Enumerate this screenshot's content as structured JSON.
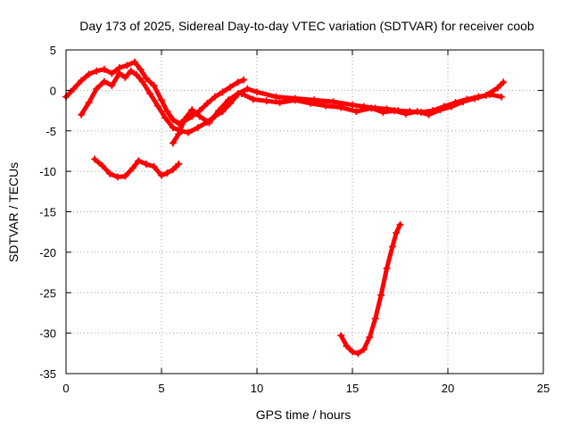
{
  "chart_data": {
    "type": "scatter",
    "title": "Day 173 of 2025, Sidereal Day-to-day VTEC variation (SDTVAR) for receiver coob",
    "xlabel": "GPS time / hours",
    "ylabel": "SDTVAR / TECUs",
    "xlim": [
      0,
      25
    ],
    "ylim": [
      -35,
      5
    ],
    "xticks": [
      0,
      5,
      10,
      15,
      20,
      25
    ],
    "yticks": [
      5,
      0,
      -5,
      -10,
      -15,
      -20,
      -25,
      -30,
      -35
    ],
    "grid": true,
    "marker": "plus",
    "color": "#ff0000",
    "series": [
      {
        "name": "track-a",
        "x": [
          0.0,
          0.4,
          0.8,
          1.2,
          1.6,
          2.0,
          2.4,
          2.8,
          3.2,
          3.6,
          3.9,
          4.2,
          4.6,
          5.0,
          5.3,
          5.6,
          5.9,
          6.2,
          6.6,
          7.0,
          7.4,
          7.8,
          8.2,
          8.6,
          9.0,
          9.3
        ],
        "y": [
          -0.8,
          0.2,
          1.2,
          2.0,
          2.4,
          2.6,
          2.1,
          2.8,
          3.1,
          3.5,
          2.6,
          1.5,
          0.6,
          -1.2,
          -2.6,
          -3.6,
          -4.1,
          -3.8,
          -3.2,
          -2.5,
          -1.6,
          -0.8,
          -0.2,
          0.4,
          1.0,
          1.3
        ]
      },
      {
        "name": "track-b",
        "x": [
          0.8,
          1.2,
          1.6,
          2.0,
          2.4,
          2.8,
          3.1,
          3.4,
          3.7,
          4.0,
          4.4,
          4.8,
          5.2,
          5.6,
          6.0,
          6.4,
          6.9,
          7.4,
          7.8,
          8.2,
          8.6,
          9.0
        ],
        "y": [
          -3.0,
          -1.5,
          0.2,
          1.1,
          0.6,
          2.1,
          1.6,
          2.4,
          1.9,
          1.1,
          -0.4,
          -1.9,
          -3.4,
          -4.6,
          -5.0,
          -5.2,
          -4.6,
          -3.9,
          -3.2,
          -2.6,
          -1.6,
          -0.5
        ]
      },
      {
        "name": "track-c",
        "x": [
          5.6,
          5.9,
          6.2,
          6.6,
          7.0,
          7.5,
          8.0,
          8.5,
          9.0,
          9.5,
          10.0,
          11.0,
          12.0,
          13.0,
          14.0,
          15.0,
          15.6,
          16.2,
          16.8,
          17.4,
          18.0,
          18.6,
          19.2,
          19.8,
          20.4,
          21.0,
          21.6,
          22.2,
          22.8
        ],
        "y": [
          -6.5,
          -5.4,
          -3.6,
          -2.4,
          -3.2,
          -4.0,
          -2.5,
          -1.2,
          -0.4,
          0.2,
          -0.2,
          -0.8,
          -1.0,
          -1.2,
          -1.4,
          -1.8,
          -2.0,
          -2.2,
          -2.3,
          -2.5,
          -2.6,
          -2.7,
          -2.5,
          -2.0,
          -1.5,
          -1.1,
          -0.8,
          -0.5,
          -0.8
        ]
      },
      {
        "name": "track-d",
        "x": [
          9.2,
          9.8,
          10.5,
          11.2,
          12.0,
          12.8,
          13.6,
          14.4,
          15.2,
          16.0,
          16.6,
          17.2,
          17.8,
          18.4,
          19.0,
          19.6,
          20.2,
          20.8,
          21.4,
          22.0,
          22.6,
          22.9
        ],
        "y": [
          -0.4,
          -1.1,
          -1.3,
          -1.5,
          -1.2,
          -1.6,
          -1.9,
          -2.1,
          -2.6,
          -2.2,
          -2.7,
          -2.5,
          -2.9,
          -2.6,
          -3.0,
          -2.4,
          -2.0,
          -1.4,
          -1.0,
          -0.6,
          0.3,
          1.0
        ]
      },
      {
        "name": "track-e",
        "x": [
          1.5,
          1.9,
          2.3,
          2.7,
          3.1,
          3.5,
          3.8,
          4.2,
          4.6,
          5.0,
          5.3,
          5.6,
          5.9
        ],
        "y": [
          -8.5,
          -9.3,
          -10.3,
          -10.7,
          -10.6,
          -9.6,
          -8.7,
          -9.1,
          -9.4,
          -10.5,
          -10.2,
          -9.8,
          -9.1
        ]
      },
      {
        "name": "track-f",
        "x": [
          14.4,
          14.7,
          15.0,
          15.3,
          15.6,
          15.9,
          16.2,
          16.5,
          16.8,
          17.1,
          17.3,
          17.5
        ],
        "y": [
          -30.3,
          -31.6,
          -32.3,
          -32.5,
          -32.0,
          -30.5,
          -28.2,
          -25.3,
          -22.0,
          -19.3,
          -17.6,
          -16.6
        ]
      }
    ]
  }
}
